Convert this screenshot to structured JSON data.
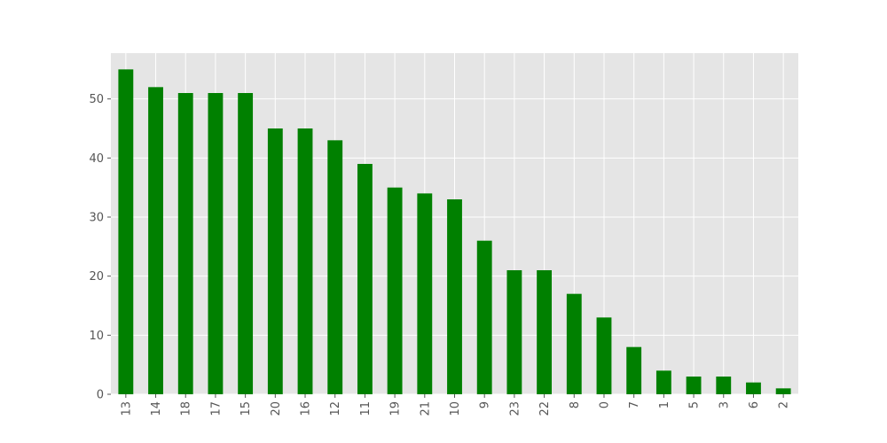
{
  "chart_data": {
    "type": "bar",
    "categories": [
      "13",
      "14",
      "18",
      "17",
      "15",
      "20",
      "16",
      "12",
      "11",
      "19",
      "21",
      "10",
      "9",
      "23",
      "22",
      "8",
      "0",
      "7",
      "1",
      "5",
      "3",
      "6",
      "2"
    ],
    "values": [
      55,
      52,
      51,
      51,
      51,
      45,
      45,
      43,
      39,
      35,
      34,
      33,
      26,
      21,
      21,
      17,
      13,
      8,
      4,
      3,
      3,
      2,
      1
    ],
    "title": "",
    "xlabel": "",
    "ylabel": "",
    "ylim": [
      0,
      57.75
    ],
    "yticks": [
      0,
      10,
      20,
      30,
      40,
      50
    ],
    "grid": true,
    "bar_color": "#008000",
    "plot_background": "#e5e5e5",
    "grid_color": "#ffffff",
    "tick_label_color": "#555555"
  }
}
